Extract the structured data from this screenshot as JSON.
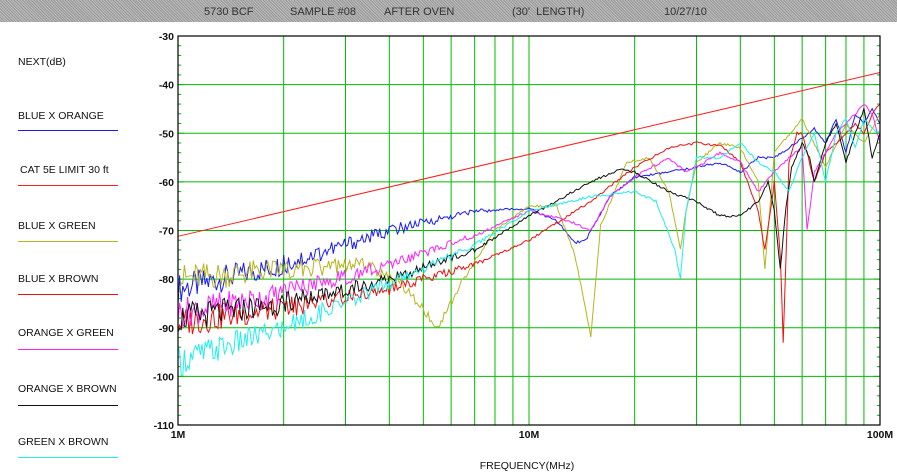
{
  "title_parts": [
    "5730 BCF",
    "SAMPLE #08",
    "AFTER OVEN",
    "(30'  LENGTH)",
    "10/27/10"
  ],
  "colors": {
    "grid": "#00bb00",
    "frame": "#000000",
    "blue_x_orange": "#1a1aff",
    "cat5e_limit": "#ff2020",
    "blue_x_green": "#b5b522",
    "blue_x_brown": "#ee1010",
    "orange_x_green": "#ff22ff",
    "orange_x_brown": "#111111",
    "green_x_brown": "#22eeee"
  },
  "chart_data": {
    "type": "line",
    "title": "5730 BCF    SAMPLE #08    AFTER OVEN    (30'  LENGTH)    10/27/10",
    "ylabel": "NEXT(dB)",
    "xlabel": "FREQUENCY(MHz)",
    "x_scale": "log",
    "xlim": [
      1,
      100
    ],
    "ylim": [
      -110,
      -30
    ],
    "x_ticks": [
      {
        "value": 1,
        "label": "1M"
      },
      {
        "value": 10,
        "label": "10M"
      },
      {
        "value": 100,
        "label": "100M"
      }
    ],
    "y_ticks": [
      -30,
      -40,
      -50,
      -60,
      -70,
      -80,
      -90,
      -100,
      -110
    ],
    "grid": true,
    "legend_position": "left",
    "series": [
      {
        "name": "BLUE X ORANGE",
        "color_key": "blue_x_orange",
        "x": [
          1,
          2,
          4,
          7,
          10,
          12,
          13.5,
          14.5,
          17,
          20,
          25,
          30,
          35,
          40,
          45,
          50,
          55,
          60,
          65,
          70,
          75,
          80,
          85,
          90,
          95,
          100
        ],
        "y": [
          -82,
          -77,
          -70,
          -66,
          -65.5,
          -68,
          -72.5,
          -72,
          -63,
          -59,
          -58,
          -57,
          -56,
          -58,
          -55,
          -55,
          -53,
          -51,
          -49,
          -52,
          -47,
          -54,
          -46,
          -48,
          -45,
          -48
        ]
      },
      {
        "name": "CAT 5E LIMIT 30 ft",
        "color_key": "cat5e_limit",
        "x": [
          1,
          100
        ],
        "y": [
          -71.2,
          -37.5
        ]
      },
      {
        "name": "BLUE X GREEN",
        "color_key": "blue_x_green",
        "x": [
          1,
          2,
          3.5,
          4.5,
          5.5,
          6.5,
          8,
          10,
          12,
          13.5,
          14.5,
          15,
          16,
          19,
          22,
          25,
          27,
          28,
          30,
          35,
          40,
          45,
          47,
          50,
          60,
          70,
          80,
          90,
          100
        ],
        "y": [
          -80,
          -78,
          -77,
          -82,
          -90,
          -80,
          -70,
          -65,
          -65,
          -75,
          -86,
          -92,
          -69,
          -56,
          -55,
          -62,
          -74,
          -66,
          -56,
          -52,
          -53,
          -60,
          -78,
          -54,
          -47,
          -57,
          -48,
          -52,
          -46
        ]
      },
      {
        "name": "BLUE X BROWN",
        "color_key": "blue_x_brown",
        "x": [
          1,
          2,
          4,
          7,
          10,
          15,
          20,
          25,
          30,
          35,
          40,
          45,
          47,
          50,
          52,
          53,
          54,
          55,
          58,
          60,
          65,
          70,
          75,
          80,
          85,
          90,
          95,
          100
        ],
        "y": [
          -89,
          -86,
          -82,
          -77,
          -72,
          -64,
          -57,
          -53,
          -52,
          -52.5,
          -56,
          -66,
          -74,
          -60,
          -75,
          -93,
          -75,
          -56,
          -50,
          -50,
          -60,
          -54,
          -52,
          -50,
          -48,
          -50,
          -46,
          -44
        ]
      },
      {
        "name": "ORANGE X GREEN",
        "color_key": "orange_x_green",
        "x": [
          1,
          2,
          4,
          7,
          10,
          13,
          15,
          17,
          20,
          25,
          28,
          30,
          35,
          40,
          45,
          50,
          55,
          60,
          62,
          65,
          70,
          75,
          80,
          85,
          90,
          95,
          100
        ],
        "y": [
          -87,
          -83,
          -77,
          -71,
          -66,
          -68,
          -70,
          -63,
          -59,
          -55,
          -58,
          -57,
          -54,
          -56,
          -62,
          -58,
          -55,
          -53,
          -70,
          -58,
          -54,
          -50,
          -48,
          -46,
          -44,
          -46,
          -52
        ]
      },
      {
        "name": "ORANGE X BROWN",
        "color_key": "orange_x_brown",
        "x": [
          1,
          2,
          4,
          7,
          10,
          15,
          18,
          20,
          25,
          30,
          35,
          40,
          45,
          48,
          50,
          52,
          54,
          56,
          60,
          63,
          65,
          70,
          75,
          80,
          85,
          90,
          95,
          100
        ],
        "y": [
          -88,
          -85,
          -80,
          -74,
          -67,
          -60,
          -57.5,
          -58,
          -62,
          -64,
          -67,
          -67,
          -64,
          -60,
          -66,
          -78,
          -65,
          -57,
          -52,
          -55,
          -60,
          -52,
          -48,
          -56,
          -50,
          -45,
          -55,
          -50
        ]
      },
      {
        "name": "GREEN X BROWN",
        "color_key": "green_x_brown",
        "x": [
          1,
          2,
          4,
          7,
          10,
          15,
          20,
          23,
          26,
          27,
          28,
          30,
          35,
          40,
          45,
          50,
          55,
          60,
          65,
          70,
          75,
          80,
          85,
          90,
          95,
          100
        ],
        "y": [
          -97,
          -90,
          -81,
          -73,
          -66,
          -63,
          -62,
          -64,
          -74,
          -80,
          -66,
          -55,
          -55,
          -52,
          -56,
          -58,
          -62,
          -55,
          -50,
          -60,
          -50,
          -47,
          -53,
          -47,
          -49,
          -50
        ]
      }
    ]
  }
}
